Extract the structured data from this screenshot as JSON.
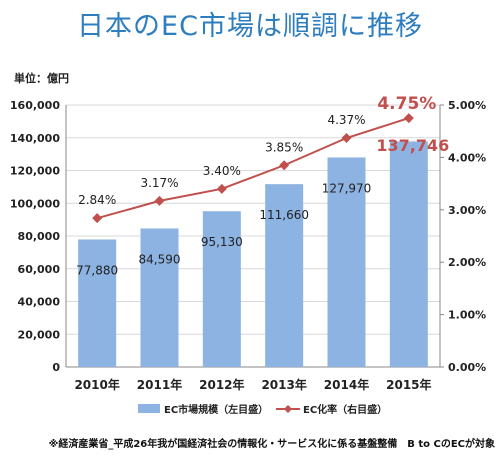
{
  "title": "日本のEC市場は順調に推移",
  "unit_label": "単位：億円",
  "source_note": "※経済産業省_平成26年我が国経済社会の情報化・サービス化に係る基盤整備　B to CのECが対象",
  "colors": {
    "title": "#2e7dbe",
    "bar": "#8db3e2",
    "line": "#c0504d",
    "grid": "#d9d9d9"
  },
  "chart_data": {
    "type": "bar",
    "categories": [
      "2010年",
      "2011年",
      "2012年",
      "2013年",
      "2014年",
      "2015年"
    ],
    "series": [
      {
        "name": "EC市場規模（左目盛）",
        "type": "bar",
        "axis": "left",
        "values": [
          77880,
          84590,
          95130,
          111660,
          127970,
          137746
        ],
        "labels": [
          "77,880",
          "84,590",
          "95,130",
          "111,660",
          "127,970",
          "137,746"
        ]
      },
      {
        "name": "EC化率（右目盛）",
        "type": "line",
        "axis": "right",
        "values": [
          2.84,
          3.17,
          3.4,
          3.85,
          4.37,
          4.75
        ],
        "labels": [
          "2.84%",
          "3.17%",
          "3.40%",
          "3.85%",
          "4.37%",
          "4.75%"
        ]
      }
    ],
    "left_axis": {
      "ylim": [
        0,
        160000
      ],
      "ticks": [
        0,
        20000,
        40000,
        60000,
        80000,
        100000,
        120000,
        140000,
        160000
      ],
      "tick_labels": [
        "0",
        "20,000",
        "40,000",
        "60,000",
        "80,000",
        "100,000",
        "120,000",
        "140,000",
        "160,000"
      ]
    },
    "right_axis": {
      "ylim": [
        0,
        5
      ],
      "ticks": [
        0,
        1,
        2,
        3,
        4,
        5
      ],
      "tick_labels": [
        "0.00%",
        "1.00%",
        "2.00%",
        "3.00%",
        "4.00%",
        "5.00%"
      ]
    },
    "grid": true,
    "legend_position": "bottom"
  }
}
